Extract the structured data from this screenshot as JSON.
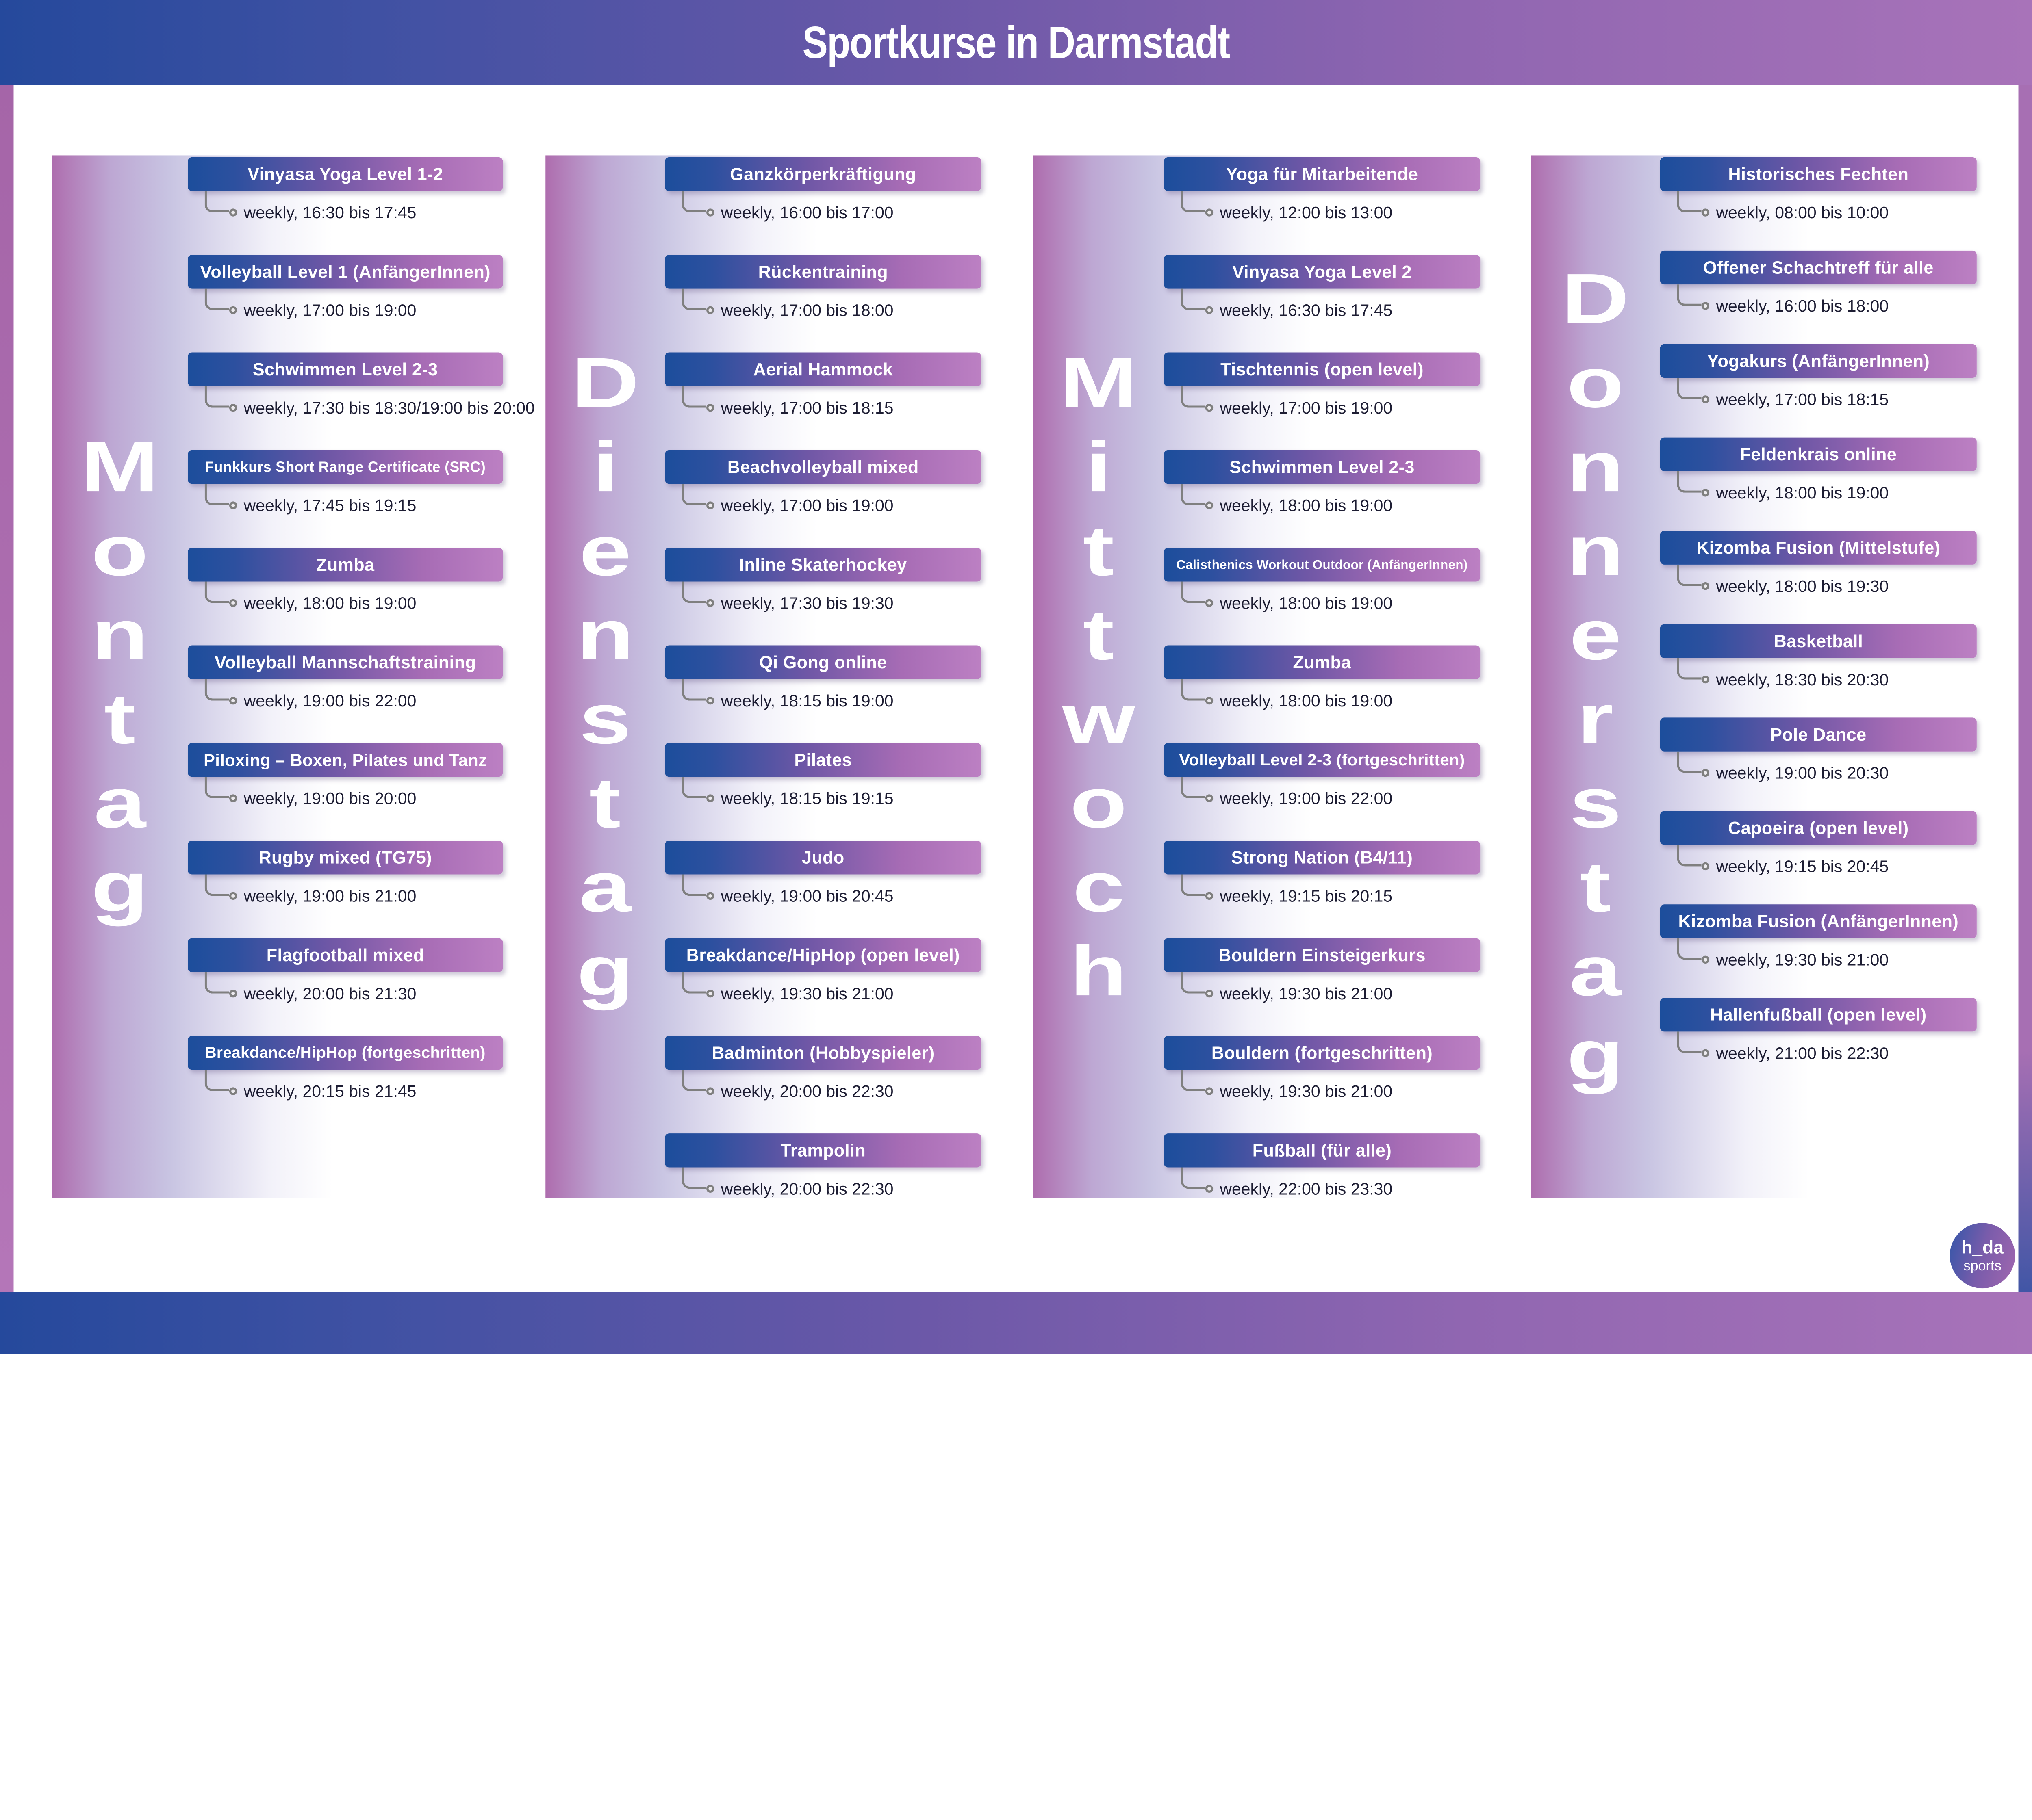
{
  "title": "Sportkurse in Darmstadt",
  "logo": {
    "top": "h_da",
    "bottom": "sports"
  },
  "colors": {
    "node_blue": "#1c4e9c",
    "node_purple": "#bc80c3",
    "frame_purple": "#a873b9",
    "column_purple": "#ae6dae",
    "time_text": "#1d1d33"
  },
  "days": [
    {
      "name": "Montag",
      "items": [
        {
          "title": "Vinyasa Yoga Level 1-2",
          "time": "weekly, 16:30 bis 17:45"
        },
        {
          "title": "Volleyball Level 1 (AnfängerInnen)",
          "time": "weekly, 17:00 bis 19:00"
        },
        {
          "title": "Schwimmen Level 2-3",
          "time": "weekly, 17:30 bis 18:30/19:00 bis 20:00"
        },
        {
          "title": "Funkkurs Short Range Certificate (SRC)",
          "time": "weekly, 17:45 bis 19:15"
        },
        {
          "title": "Zumba",
          "time": "weekly, 18:00 bis 19:00"
        },
        {
          "title": "Volleyball Mannschaftstraining",
          "time": "weekly, 19:00 bis 22:00"
        },
        {
          "title": "Piloxing – Boxen, Pilates und Tanz",
          "time": "weekly, 19:00 bis 20:00"
        },
        {
          "title": "Rugby mixed (TG75)",
          "time": "weekly, 19:00 bis 21:00"
        },
        {
          "title": "Flagfootball mixed",
          "time": "weekly, 20:00 bis 21:30"
        },
        {
          "title": "Breakdance/HipHop (fortgeschritten)",
          "time": "weekly, 20:15 bis 21:45"
        }
      ]
    },
    {
      "name": "Dienstag",
      "items": [
        {
          "title": "Ganzkörperkräftigung",
          "time": "weekly, 16:00 bis 17:00"
        },
        {
          "title": "Rückentraining",
          "time": "weekly, 17:00 bis 18:00"
        },
        {
          "title": "Aerial Hammock",
          "time": "weekly, 17:00 bis 18:15"
        },
        {
          "title": "Beachvolleyball mixed",
          "time": "weekly, 17:00 bis 19:00"
        },
        {
          "title": "Inline Skaterhockey",
          "time": "weekly, 17:30 bis 19:30"
        },
        {
          "title": "Qi Gong online",
          "time": "weekly, 18:15 bis 19:00"
        },
        {
          "title": "Pilates",
          "time": "weekly, 18:15 bis 19:15"
        },
        {
          "title": "Judo",
          "time": "weekly, 19:00 bis 20:45"
        },
        {
          "title": "Breakdance/HipHop (open level)",
          "time": "weekly, 19:30 bis 21:00"
        },
        {
          "title": "Badminton (Hobbyspieler)",
          "time": "weekly, 20:00 bis 22:30"
        },
        {
          "title": "Trampolin",
          "time": "weekly, 20:00 bis 22:30"
        }
      ]
    },
    {
      "name": "Mittwoch",
      "items": [
        {
          "title": "Yoga für Mitarbeitende",
          "time": "weekly, 12:00 bis 13:00"
        },
        {
          "title": "Vinyasa Yoga Level 2",
          "time": "weekly, 16:30 bis 17:45"
        },
        {
          "title": "Tischtennis (open level)",
          "time": "weekly, 17:00 bis 19:00"
        },
        {
          "title": "Schwimmen Level 2-3",
          "time": "weekly, 18:00 bis 19:00"
        },
        {
          "title": "Calisthenics Workout Outdoor (AnfängerInnen)",
          "time": "weekly, 18:00 bis 19:00"
        },
        {
          "title": "Zumba",
          "time": "weekly, 18:00 bis 19:00"
        },
        {
          "title": "Volleyball Level 2-3 (fortgeschritten)",
          "time": "weekly, 19:00 bis 22:00"
        },
        {
          "title": "Strong Nation (B4/11)",
          "time": "weekly, 19:15 bis 20:15"
        },
        {
          "title": "Bouldern Einsteigerkurs",
          "time": "weekly, 19:30 bis 21:00"
        },
        {
          "title": "Bouldern (fortgeschritten)",
          "time": "weekly, 19:30 bis 21:00"
        },
        {
          "title": "Fußball (für alle)",
          "time": "weekly, 22:00 bis 23:30"
        }
      ]
    },
    {
      "name": "Donnerstag",
      "items": [
        {
          "title": "Historisches Fechten",
          "time": "weekly, 08:00 bis 10:00"
        },
        {
          "title": "Offener Schachtreff für alle",
          "time": "weekly, 16:00 bis 18:00"
        },
        {
          "title": "Yogakurs (AnfängerInnen)",
          "time": "weekly, 17:00 bis 18:15"
        },
        {
          "title": "Feldenkrais online",
          "time": "weekly, 18:00 bis 19:00"
        },
        {
          "title": "Kizomba Fusion (Mittelstufe)",
          "time": "weekly, 18:00 bis 19:30"
        },
        {
          "title": "Basketball",
          "time": "weekly, 18:30 bis 20:30"
        },
        {
          "title": "Pole Dance",
          "time": "weekly, 19:00 bis 20:30"
        },
        {
          "title": "Capoeira (open level)",
          "time": "weekly, 19:15 bis 20:45"
        },
        {
          "title": "Kizomba Fusion (AnfängerInnen)",
          "time": "weekly, 19:30 bis 21:00"
        },
        {
          "title": "Hallenfußball (open level)",
          "time": "weekly, 21:00 bis 22:30"
        }
      ]
    }
  ]
}
